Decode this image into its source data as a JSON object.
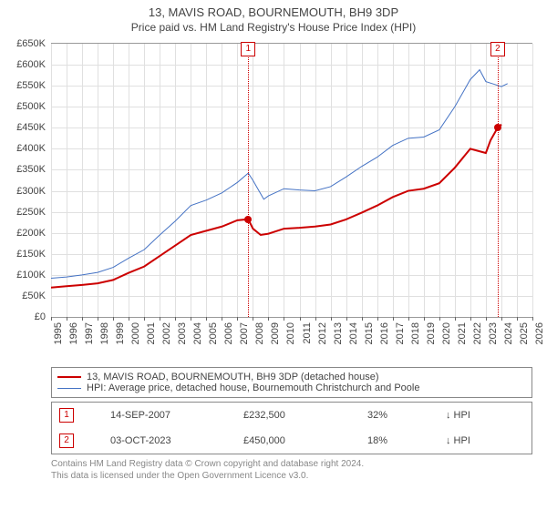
{
  "title_line1": "13, MAVIS ROAD, BOURNEMOUTH, BH9 3DP",
  "title_line2": "Price paid vs. HM Land Registry's House Price Index (HPI)",
  "chart": {
    "type": "line",
    "y": {
      "min": 0,
      "max": 650,
      "step": 50,
      "prefix": "£",
      "suffix": "K"
    },
    "x": {
      "min": 1995,
      "max": 2026,
      "step": 1
    },
    "grid_color": "#e0e0e0",
    "border_color": "#999999",
    "font_size_ticks": 11,
    "series": [
      {
        "name": "price_paid",
        "label": "13, MAVIS ROAD, BOURNEMOUTH, BH9 3DP (detached house)",
        "color": "#cc0000",
        "width": 2,
        "points": [
          [
            1995,
            70
          ],
          [
            1996,
            73
          ],
          [
            1997,
            76
          ],
          [
            1998,
            80
          ],
          [
            1999,
            88
          ],
          [
            2000,
            105
          ],
          [
            2001,
            120
          ],
          [
            2002,
            145
          ],
          [
            2003,
            170
          ],
          [
            2004,
            195
          ],
          [
            2005,
            205
          ],
          [
            2006,
            215
          ],
          [
            2007,
            230
          ],
          [
            2007.7,
            232.5
          ],
          [
            2008,
            210
          ],
          [
            2008.5,
            195
          ],
          [
            2009,
            198
          ],
          [
            2010,
            210
          ],
          [
            2011,
            212
          ],
          [
            2012,
            215
          ],
          [
            2013,
            220
          ],
          [
            2014,
            232
          ],
          [
            2015,
            248
          ],
          [
            2016,
            265
          ],
          [
            2017,
            285
          ],
          [
            2018,
            300
          ],
          [
            2019,
            305
          ],
          [
            2020,
            318
          ],
          [
            2021,
            355
          ],
          [
            2022,
            400
          ],
          [
            2023,
            390
          ],
          [
            2023.3,
            420
          ],
          [
            2023.76,
            450
          ],
          [
            2024,
            458
          ]
        ]
      },
      {
        "name": "hpi",
        "label": "HPI: Average price, detached house, Bournemouth Christchurch and Poole",
        "color": "#4472c4",
        "width": 1,
        "points": [
          [
            1995,
            92
          ],
          [
            1996,
            95
          ],
          [
            1997,
            100
          ],
          [
            1998,
            106
          ],
          [
            1999,
            118
          ],
          [
            2000,
            140
          ],
          [
            2001,
            160
          ],
          [
            2002,
            195
          ],
          [
            2003,
            228
          ],
          [
            2004,
            265
          ],
          [
            2005,
            278
          ],
          [
            2006,
            295
          ],
          [
            2007,
            320
          ],
          [
            2007.7,
            342
          ],
          [
            2008,
            325
          ],
          [
            2008.7,
            280
          ],
          [
            2009,
            288
          ],
          [
            2010,
            305
          ],
          [
            2011,
            302
          ],
          [
            2012,
            300
          ],
          [
            2013,
            310
          ],
          [
            2014,
            333
          ],
          [
            2015,
            358
          ],
          [
            2016,
            380
          ],
          [
            2017,
            408
          ],
          [
            2018,
            425
          ],
          [
            2019,
            428
          ],
          [
            2020,
            445
          ],
          [
            2021,
            500
          ],
          [
            2022,
            565
          ],
          [
            2022.6,
            588
          ],
          [
            2023,
            560
          ],
          [
            2023.5,
            554
          ],
          [
            2024,
            548
          ],
          [
            2024.4,
            555
          ]
        ]
      }
    ],
    "markers": [
      {
        "label": "1",
        "x": 2007.7,
        "y": 232.5
      },
      {
        "label": "2",
        "x": 2023.76,
        "y": 450
      }
    ],
    "dot_color": "#cc0000"
  },
  "transactions": [
    {
      "marker": "1",
      "date": "14-SEP-2007",
      "price": "£232,500",
      "delta": "32%",
      "suffix": "↓ HPI"
    },
    {
      "marker": "2",
      "date": "03-OCT-2023",
      "price": "£450,000",
      "delta": "18%",
      "suffix": "↓ HPI"
    }
  ],
  "footer_line1": "Contains HM Land Registry data © Crown copyright and database right 2024.",
  "footer_line2": "This data is licensed under the Open Government Licence v3.0."
}
